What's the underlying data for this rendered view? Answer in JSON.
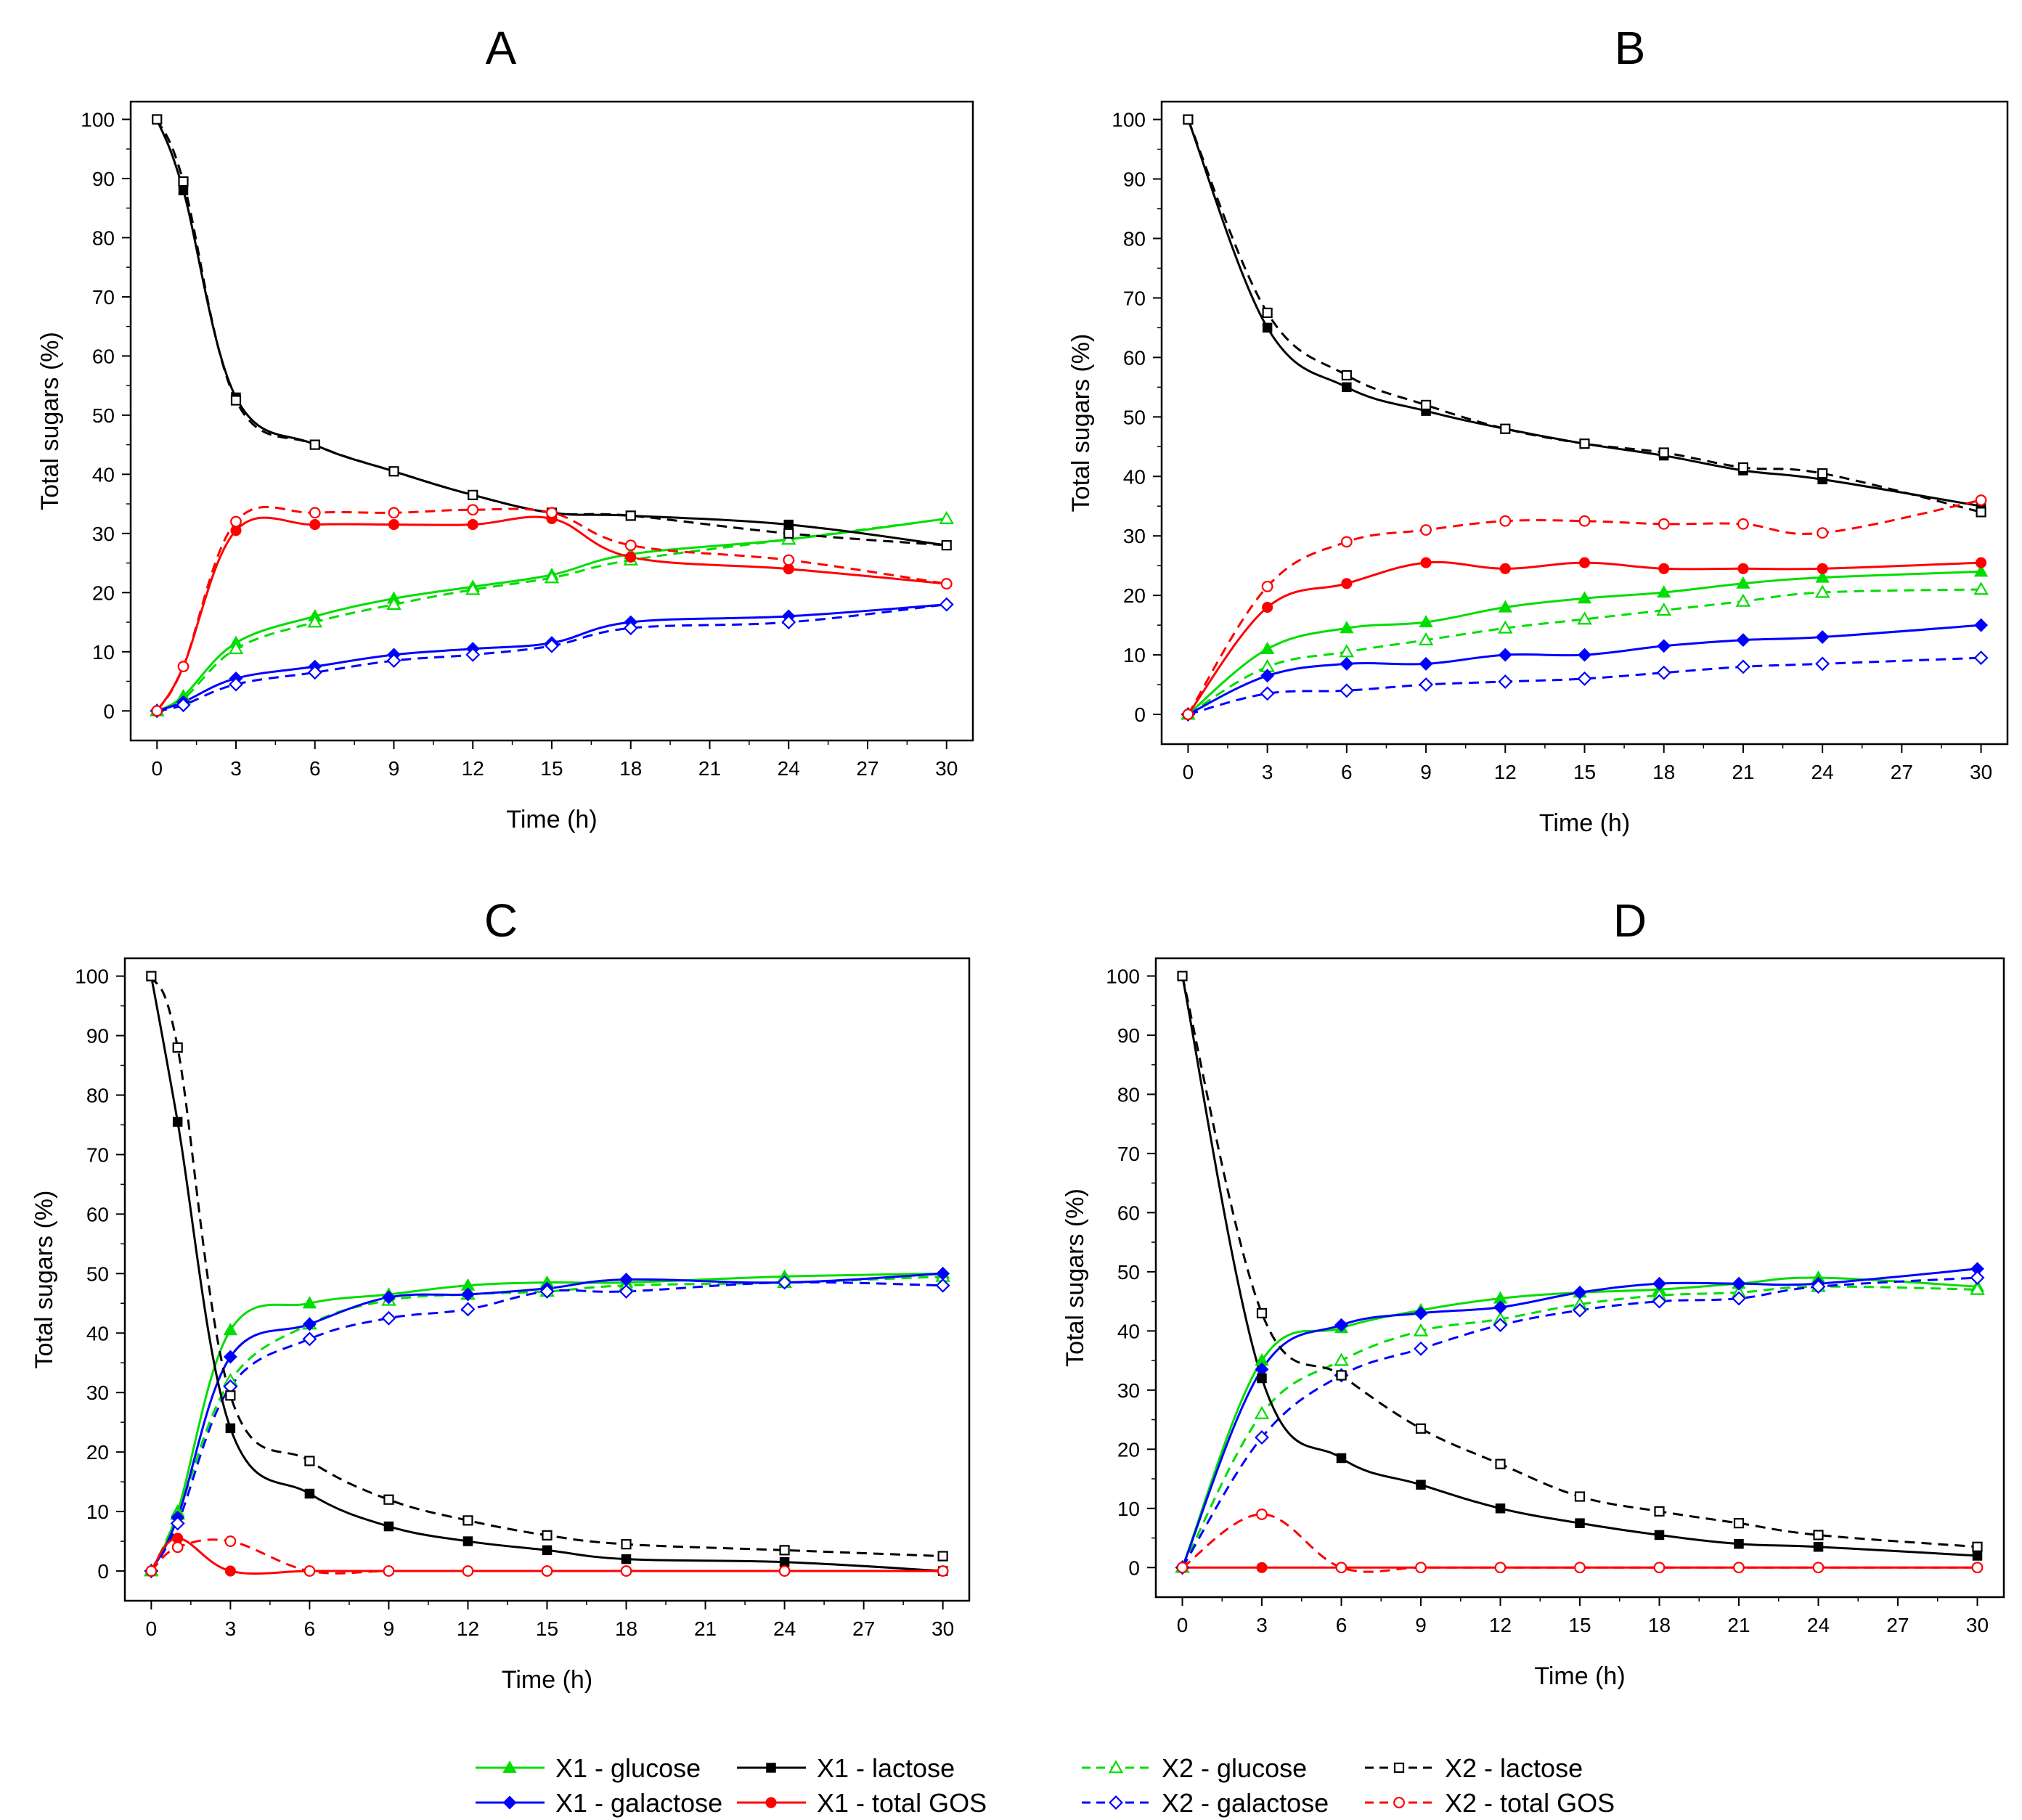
{
  "figure": {
    "legend": {
      "entries": [
        {
          "key": "X1-glucose",
          "label": "X1 - glucose"
        },
        {
          "key": "X1-lactose",
          "label": "X1 - lactose"
        },
        {
          "key": "X2-glucose",
          "label": "X2 - glucose"
        },
        {
          "key": "X2-lactose",
          "label": "X2 - lactose"
        },
        {
          "key": "X1-galactose",
          "label": "X1 - galactose"
        },
        {
          "key": "X1-gos",
          "label": "X1 - total GOS"
        },
        {
          "key": "X2-galactose",
          "label": "X2 - galactose"
        },
        {
          "key": "X2-gos",
          "label": "X2 - total GOS"
        }
      ]
    }
  },
  "series_styles": {
    "X1-glucose": {
      "color": "#00dd00",
      "dash": false,
      "marker": "triangle",
      "filled": true
    },
    "X1-galactose": {
      "color": "#0000ff",
      "dash": false,
      "marker": "diamond",
      "filled": true
    },
    "X1-lactose": {
      "color": "#000000",
      "dash": false,
      "marker": "square",
      "filled": true
    },
    "X1-gos": {
      "color": "#ff0000",
      "dash": false,
      "marker": "circle",
      "filled": true
    },
    "X2-glucose": {
      "color": "#00dd00",
      "dash": true,
      "marker": "triangle",
      "filled": false
    },
    "X2-galactose": {
      "color": "#0000ff",
      "dash": true,
      "marker": "diamond",
      "filled": false
    },
    "X2-lactose": {
      "color": "#000000",
      "dash": true,
      "marker": "square",
      "filled": false
    },
    "X2-gos": {
      "color": "#ff0000",
      "dash": true,
      "marker": "circle",
      "filled": false
    }
  },
  "chart_data": [
    {
      "panel": "A",
      "type": "line",
      "xlabel": "Time (h)",
      "ylabel": "Total sugars (%)",
      "xlim": [
        -1,
        31
      ],
      "ylim": [
        -5,
        103
      ],
      "xticks": [
        0,
        3,
        6,
        9,
        12,
        15,
        18,
        21,
        24,
        27,
        30
      ],
      "yticks": [
        0,
        10,
        20,
        30,
        40,
        50,
        60,
        70,
        80,
        90,
        100
      ],
      "series": [
        {
          "key": "X1-glucose",
          "x": [
            0,
            1,
            3,
            6,
            9,
            12,
            15,
            18,
            24,
            30
          ],
          "y": [
            0,
            2.5,
            11.5,
            16,
            19,
            21,
            23,
            26.5,
            29,
            32.5
          ]
        },
        {
          "key": "X2-glucose",
          "x": [
            0,
            1,
            3,
            6,
            9,
            12,
            15,
            18,
            24,
            30
          ],
          "y": [
            0,
            2,
            10.5,
            15,
            18,
            20.5,
            22.5,
            25.5,
            29,
            32.5
          ]
        },
        {
          "key": "X1-galactose",
          "x": [
            0,
            1,
            3,
            6,
            9,
            12,
            15,
            18,
            24,
            30
          ],
          "y": [
            0,
            1.5,
            5.5,
            7.5,
            9.5,
            10.5,
            11.5,
            15,
            16,
            18
          ]
        },
        {
          "key": "X2-galactose",
          "x": [
            0,
            1,
            3,
            6,
            9,
            12,
            15,
            18,
            24,
            30
          ],
          "y": [
            0,
            1,
            4.5,
            6.5,
            8.5,
            9.5,
            11,
            14,
            15,
            18
          ]
        },
        {
          "key": "X1-lactose",
          "x": [
            0,
            1,
            3,
            6,
            9,
            12,
            15,
            18,
            24,
            30
          ],
          "y": [
            100,
            88,
            53,
            45,
            40.5,
            36.5,
            33.5,
            33,
            31.5,
            28
          ]
        },
        {
          "key": "X2-lactose",
          "x": [
            0,
            1,
            3,
            6,
            9,
            12,
            15,
            18,
            24,
            30
          ],
          "y": [
            100,
            89.5,
            52.5,
            45,
            40.5,
            36.5,
            33.5,
            33,
            30,
            28
          ]
        },
        {
          "key": "X1-gos",
          "x": [
            0,
            1,
            3,
            6,
            9,
            12,
            15,
            18,
            24,
            30
          ],
          "y": [
            0,
            7.5,
            30.5,
            31.5,
            31.5,
            31.5,
            32.5,
            26,
            24,
            21.5
          ]
        },
        {
          "key": "X2-gos",
          "x": [
            0,
            1,
            3,
            6,
            9,
            12,
            15,
            18,
            24,
            30
          ],
          "y": [
            0,
            7.5,
            32,
            33.5,
            33.5,
            34,
            33.5,
            28,
            25.5,
            21.5
          ]
        }
      ]
    },
    {
      "panel": "B",
      "type": "line",
      "xlabel": "Time (h)",
      "ylabel": "Total sugars (%)",
      "xlim": [
        -1,
        31
      ],
      "ylim": [
        -5,
        103
      ],
      "xticks": [
        0,
        3,
        6,
        9,
        12,
        15,
        18,
        21,
        24,
        27,
        30
      ],
      "yticks": [
        0,
        10,
        20,
        30,
        40,
        50,
        60,
        70,
        80,
        90,
        100
      ],
      "series": [
        {
          "key": "X1-glucose",
          "x": [
            0,
            3,
            6,
            9,
            12,
            15,
            18,
            21,
            24,
            30
          ],
          "y": [
            0,
            11,
            14.5,
            15.5,
            18,
            19.5,
            20.5,
            22,
            23,
            24
          ]
        },
        {
          "key": "X2-glucose",
          "x": [
            0,
            3,
            6,
            9,
            12,
            15,
            18,
            21,
            24,
            30
          ],
          "y": [
            0,
            8,
            10.5,
            12.5,
            14.5,
            16,
            17.5,
            19,
            20.5,
            21
          ]
        },
        {
          "key": "X1-galactose",
          "x": [
            0,
            3,
            6,
            9,
            12,
            15,
            18,
            21,
            24,
            30
          ],
          "y": [
            0,
            6.5,
            8.5,
            8.5,
            10,
            10,
            11.5,
            12.5,
            13,
            15
          ]
        },
        {
          "key": "X2-galactose",
          "x": [
            0,
            3,
            6,
            9,
            12,
            15,
            18,
            21,
            24,
            30
          ],
          "y": [
            0,
            3.5,
            4,
            5,
            5.5,
            6,
            7,
            8,
            8.5,
            9.5
          ]
        },
        {
          "key": "X1-lactose",
          "x": [
            0,
            3,
            6,
            9,
            12,
            15,
            18,
            21,
            24,
            30
          ],
          "y": [
            100,
            65,
            55,
            51,
            48,
            45.5,
            43.5,
            41,
            39.5,
            35
          ]
        },
        {
          "key": "X2-lactose",
          "x": [
            0,
            3,
            6,
            9,
            12,
            15,
            18,
            21,
            24,
            30
          ],
          "y": [
            100,
            67.5,
            57,
            52,
            48,
            45.5,
            44,
            41.5,
            40.5,
            34
          ]
        },
        {
          "key": "X1-gos",
          "x": [
            0,
            3,
            6,
            9,
            12,
            15,
            18,
            21,
            24,
            30
          ],
          "y": [
            0,
            18,
            22,
            25.5,
            24.5,
            25.5,
            24.5,
            24.5,
            24.5,
            25.5
          ]
        },
        {
          "key": "X2-gos",
          "x": [
            0,
            3,
            6,
            9,
            12,
            15,
            18,
            21,
            24,
            30
          ],
          "y": [
            0,
            21.5,
            29,
            31,
            32.5,
            32.5,
            32,
            32,
            30.5,
            36
          ]
        }
      ]
    },
    {
      "panel": "C",
      "type": "line",
      "xlabel": "Time (h)",
      "ylabel": "Total sugars (%)",
      "xlim": [
        -1,
        31
      ],
      "ylim": [
        -5,
        103
      ],
      "xticks": [
        0,
        3,
        6,
        9,
        12,
        15,
        18,
        21,
        24,
        27,
        30
      ],
      "yticks": [
        0,
        10,
        20,
        30,
        40,
        50,
        60,
        70,
        80,
        90,
        100
      ],
      "series": [
        {
          "key": "X1-glucose",
          "x": [
            0,
            1,
            3,
            6,
            9,
            12,
            15,
            18,
            24,
            30
          ],
          "y": [
            0,
            10,
            40.5,
            45,
            46.5,
            48,
            48.5,
            48.5,
            49.5,
            50
          ]
        },
        {
          "key": "X2-glucose",
          "x": [
            0,
            1,
            3,
            6,
            9,
            12,
            15,
            18,
            24,
            30
          ],
          "y": [
            0,
            9.5,
            32,
            41.5,
            45.5,
            46.5,
            47,
            48,
            48.5,
            49.5
          ]
        },
        {
          "key": "X1-galactose",
          "x": [
            0,
            1,
            3,
            6,
            9,
            12,
            15,
            18,
            24,
            30
          ],
          "y": [
            0,
            9,
            36,
            41.5,
            46,
            46.5,
            47.5,
            49,
            48.5,
            50
          ]
        },
        {
          "key": "X2-galactose",
          "x": [
            0,
            1,
            3,
            6,
            9,
            12,
            15,
            18,
            24,
            30
          ],
          "y": [
            0,
            8,
            31,
            39,
            42.5,
            44,
            47,
            47,
            48.5,
            48
          ]
        },
        {
          "key": "X1-lactose",
          "x": [
            0,
            1,
            3,
            6,
            9,
            12,
            15,
            18,
            24,
            30
          ],
          "y": [
            100,
            75.5,
            24,
            13,
            7.5,
            5,
            3.5,
            2,
            1.5,
            0
          ]
        },
        {
          "key": "X2-lactose",
          "x": [
            0,
            1,
            3,
            6,
            9,
            12,
            15,
            18,
            24,
            30
          ],
          "y": [
            100,
            88,
            29.5,
            18.5,
            12,
            8.5,
            6,
            4.5,
            3.5,
            2.5
          ]
        },
        {
          "key": "X1-gos",
          "x": [
            0,
            1,
            3,
            6,
            9,
            12,
            15,
            18,
            24,
            30
          ],
          "y": [
            0,
            5.5,
            0,
            0,
            0,
            0,
            0,
            0,
            0,
            0
          ]
        },
        {
          "key": "X2-gos",
          "x": [
            0,
            1,
            3,
            6,
            9,
            12,
            15,
            18,
            24,
            30
          ],
          "y": [
            0,
            4,
            5,
            0,
            0,
            0,
            0,
            0,
            0,
            0
          ]
        }
      ]
    },
    {
      "panel": "D",
      "type": "line",
      "xlabel": "Time (h)",
      "ylabel": "Total sugars (%)",
      "xlim": [
        -1,
        31
      ],
      "ylim": [
        -5,
        103
      ],
      "xticks": [
        0,
        3,
        6,
        9,
        12,
        15,
        18,
        21,
        24,
        27,
        30
      ],
      "yticks": [
        0,
        10,
        20,
        30,
        40,
        50,
        60,
        70,
        80,
        90,
        100
      ],
      "series": [
        {
          "key": "X1-glucose",
          "x": [
            0,
            3,
            6,
            9,
            12,
            15,
            18,
            21,
            24,
            30
          ],
          "y": [
            0,
            35,
            40.5,
            43.5,
            45.5,
            46.5,
            47,
            48,
            49,
            47.5
          ]
        },
        {
          "key": "X2-glucose",
          "x": [
            0,
            3,
            6,
            9,
            12,
            15,
            18,
            21,
            24,
            30
          ],
          "y": [
            0,
            26,
            35,
            40,
            42,
            44.5,
            46,
            46.5,
            47.5,
            47
          ]
        },
        {
          "key": "X1-galactose",
          "x": [
            0,
            3,
            6,
            9,
            12,
            15,
            18,
            21,
            24,
            30
          ],
          "y": [
            0,
            33.5,
            41,
            43,
            44,
            46.5,
            48,
            48,
            48,
            50.5
          ]
        },
        {
          "key": "X2-galactose",
          "x": [
            0,
            3,
            6,
            9,
            12,
            15,
            18,
            21,
            24,
            30
          ],
          "y": [
            0,
            22,
            32.5,
            37,
            41,
            43.5,
            45,
            45.5,
            47.5,
            49
          ]
        },
        {
          "key": "X1-lactose",
          "x": [
            0,
            3,
            6,
            9,
            12,
            15,
            18,
            21,
            24,
            30
          ],
          "y": [
            100,
            32,
            18.5,
            14,
            10,
            7.5,
            5.5,
            4,
            3.5,
            2
          ]
        },
        {
          "key": "X2-lactose",
          "x": [
            0,
            3,
            6,
            9,
            12,
            15,
            18,
            21,
            24,
            30
          ],
          "y": [
            100,
            43,
            32.5,
            23.5,
            17.5,
            12,
            9.5,
            7.5,
            5.5,
            3.5
          ]
        },
        {
          "key": "X1-gos",
          "x": [
            0,
            3,
            6,
            9,
            12,
            15,
            18,
            21,
            24,
            30
          ],
          "y": [
            0,
            0,
            0,
            0,
            0,
            0,
            0,
            0,
            0,
            0
          ]
        },
        {
          "key": "X2-gos",
          "x": [
            0,
            3,
            6,
            9,
            12,
            15,
            18,
            21,
            24,
            30
          ],
          "y": [
            0,
            9,
            0,
            0,
            0,
            0,
            0,
            0,
            0,
            0
          ]
        }
      ]
    }
  ]
}
